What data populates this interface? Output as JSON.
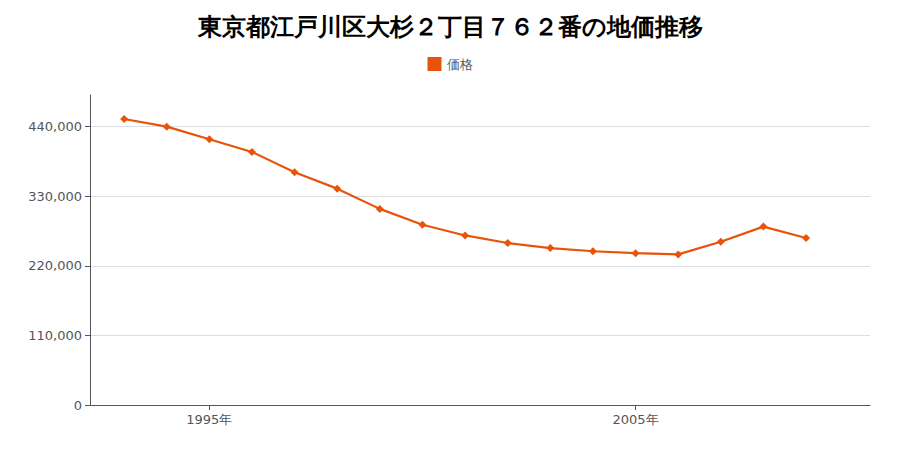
{
  "chart_data": {
    "type": "line",
    "title": "東京都江戸川区大杉２丁目７６２番の地価推移",
    "x": [
      1993,
      1994,
      1995,
      1996,
      1997,
      1998,
      1999,
      2000,
      2001,
      2002,
      2003,
      2004,
      2005,
      2006,
      2007,
      2008,
      2009
    ],
    "series": [
      {
        "name": "価格",
        "color": "#E8530A",
        "marker": "diamond",
        "values": [
          452000,
          440000,
          420000,
          400000,
          368000,
          342000,
          310000,
          285000,
          268000,
          256000,
          248000,
          243000,
          240000,
          238000,
          258000,
          282000,
          264000
        ]
      }
    ],
    "xlim": [
      1992.2,
      2010.5
    ],
    "xticks": [
      {
        "value": 1995,
        "label": "1995年"
      },
      {
        "value": 2005,
        "label": "2005年"
      }
    ],
    "ylim": [
      0,
      490000
    ],
    "yticks": [
      0,
      {
        "value": 110000,
        "label": "110,000"
      },
      {
        "value": 220000,
        "label": "220,000"
      },
      {
        "value": 330000,
        "label": "330,000"
      },
      {
        "value": 440000,
        "label": "440,000"
      }
    ],
    "grid": "y",
    "legend": "top"
  }
}
